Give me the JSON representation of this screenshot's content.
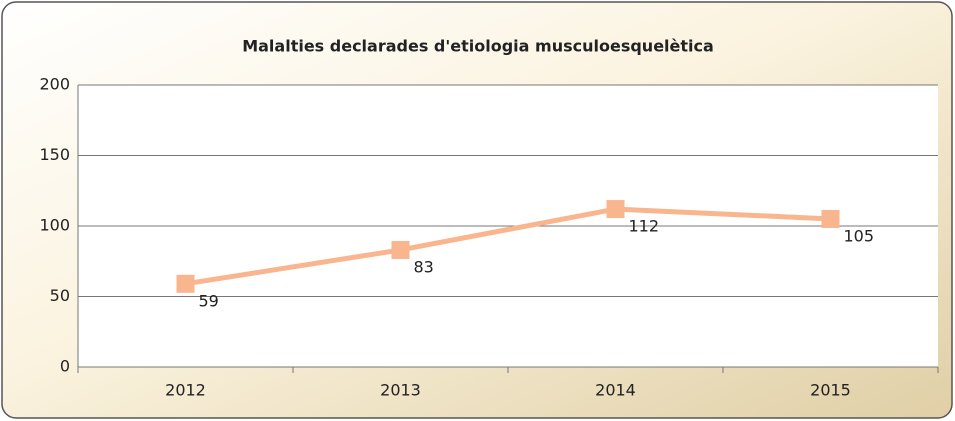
{
  "chart_data": {
    "type": "line",
    "title": "Malalties declarades d'etiologia musculoesquelètica",
    "categories": [
      "2012",
      "2013",
      "2014",
      "2015"
    ],
    "values": [
      59,
      83,
      112,
      105
    ],
    "color": "#f8b58e",
    "ylim": [
      0,
      200
    ],
    "yticks": [
      0,
      50,
      100,
      150,
      200
    ],
    "grid": true
  }
}
